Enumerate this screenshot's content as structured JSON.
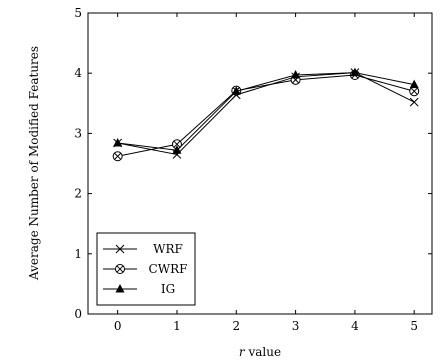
{
  "chart_data": {
    "type": "line",
    "xlabel_var": "r",
    "xlabel_rest": " value",
    "ylabel": "Average Number of Modified Features",
    "x": [
      0,
      1,
      2,
      3,
      4,
      5
    ],
    "xlim": [
      -0.5,
      5.3
    ],
    "ylim": [
      0,
      5
    ],
    "xticks": [
      "0",
      "1",
      "2",
      "3",
      "4",
      "5"
    ],
    "yticks": [
      "0",
      "1",
      "2",
      "3",
      "4",
      "5"
    ],
    "grid": false,
    "legend_position": "bottom-left",
    "series": [
      {
        "name": "WRF",
        "marker": "x",
        "values": [
          2.84,
          2.65,
          3.64,
          3.94,
          4.01,
          3.52
        ]
      },
      {
        "name": "CWRF",
        "marker": "otimes",
        "values": [
          2.62,
          2.82,
          3.71,
          3.89,
          3.97,
          3.7
        ]
      },
      {
        "name": "IG",
        "marker": "triangle",
        "values": [
          2.84,
          2.72,
          3.7,
          3.97,
          4.01,
          3.81
        ]
      }
    ]
  }
}
